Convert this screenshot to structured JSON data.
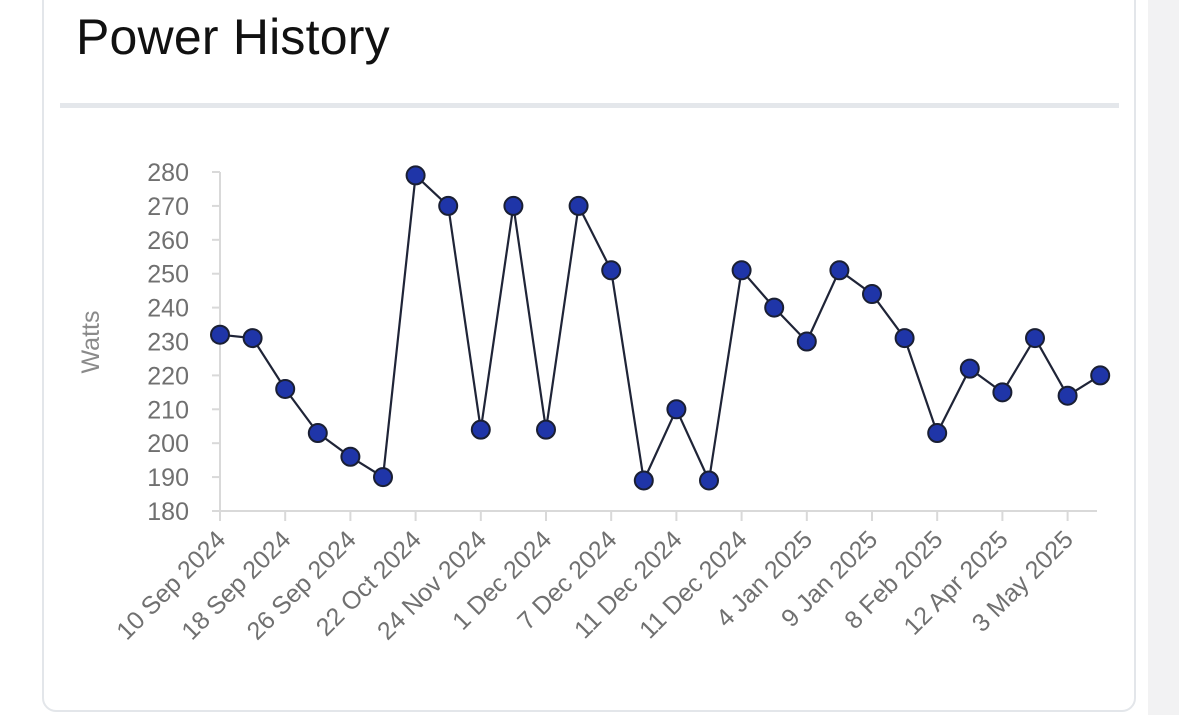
{
  "card": {
    "title": "Power History"
  },
  "chart_data": {
    "type": "line",
    "title": "Power History",
    "xlabel": "",
    "ylabel": "Watts",
    "ylim": [
      180,
      280
    ],
    "yticks": [
      180,
      190,
      200,
      210,
      220,
      230,
      240,
      250,
      260,
      270,
      280
    ],
    "grid": false,
    "legend": "none",
    "x_tick_labels": [
      "10 Sep 2024",
      "18 Sep 2024",
      "26 Sep 2024",
      "22 Oct 2024",
      "24 Nov 2024",
      "1 Dec 2024",
      "7 Dec 2024",
      "11 Dec 2024",
      "11 Dec 2024",
      "4 Jan 2025",
      "9 Jan 2025",
      "8 Feb 2025",
      "12 Apr 2025",
      "3 May 2025"
    ],
    "series": [
      {
        "values": [
          232,
          231,
          216,
          203,
          196,
          190,
          279,
          270,
          204,
          270,
          204,
          270,
          251,
          189,
          210,
          189,
          251,
          240,
          230,
          251,
          244,
          231,
          203,
          222,
          215,
          231,
          214,
          220
        ]
      }
    ],
    "colors": {
      "line": "#1f2437",
      "marker_fill": "#1f35a8",
      "marker_stroke": "#1a1f33",
      "axis": "#d9d9d9",
      "tick_text": "#707070"
    }
  }
}
